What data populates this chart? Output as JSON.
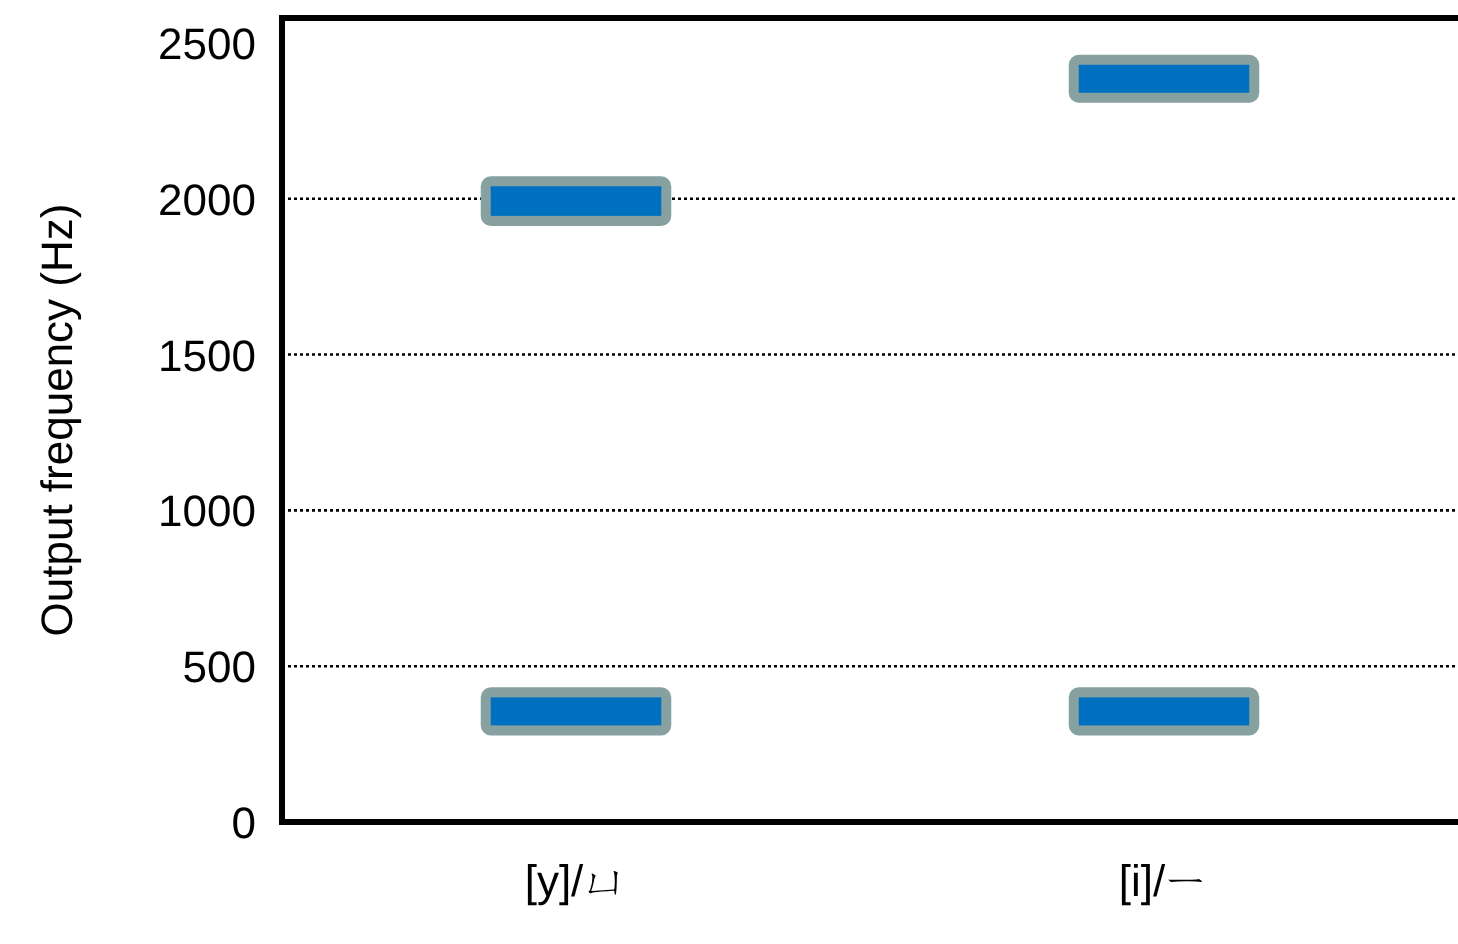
{
  "chart_data": {
    "type": "bar",
    "ylabel": "Output frequency (Hz)",
    "categories": [
      "[y]/ㄩ",
      "[i]/ㄧ"
    ],
    "series": [
      {
        "color": "#0070c0",
        "base": [
          310,
          310
        ],
        "values": [
          90,
          90
        ]
      },
      {
        "color": "#0070c0",
        "base": [
          1945,
          2340
        ],
        "values": [
          95,
          90
        ]
      }
    ],
    "ylim": [
      0,
      2580
    ],
    "yticks": [
      0,
      500,
      1000,
      1500,
      2000,
      2500
    ],
    "grid": "y"
  }
}
